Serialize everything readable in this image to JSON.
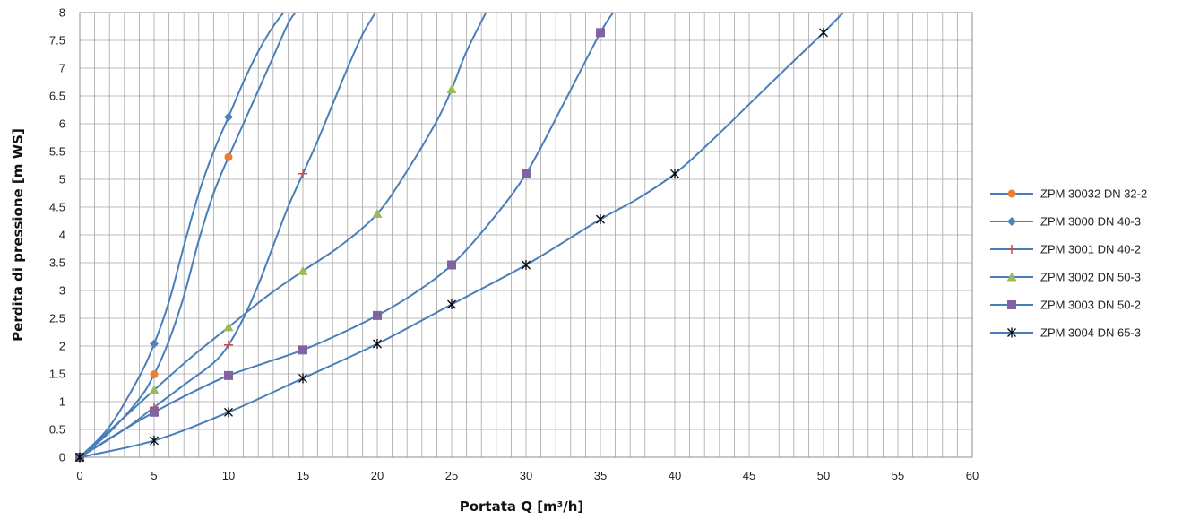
{
  "chart_data": {
    "type": "line",
    "title": "",
    "xlabel": "Portata Q [m³/h]",
    "ylabel": "Perdita di pressione  [m WS]",
    "xlim": [
      0,
      60
    ],
    "ylim": [
      0,
      8
    ],
    "x_ticks": [
      "0",
      "5",
      "10",
      "15",
      "20",
      "25",
      "30",
      "35",
      "40",
      "45",
      "50",
      "55",
      "60"
    ],
    "y_ticks": [
      "0",
      "0.5",
      "1",
      "1.5",
      "2",
      "2.5",
      "3",
      "3.5",
      "4",
      "4.5",
      "5",
      "5.5",
      "6",
      "6.5",
      "7",
      "7.5",
      "8"
    ],
    "grid": "on",
    "legend_position": "right",
    "line_color": "#4a7ebb",
    "series": [
      {
        "name": "ZPM 30032 DN 32-2",
        "marker": "circle",
        "marker_color": "#ed7d31",
        "points": [
          [
            0,
            0
          ],
          [
            5,
            1.49
          ],
          [
            10,
            5.4
          ]
        ],
        "curve": [
          [
            0,
            0
          ],
          [
            2,
            0.45
          ],
          [
            4,
            1.05
          ],
          [
            5,
            1.49
          ],
          [
            6,
            2.1
          ],
          [
            7,
            2.9
          ],
          [
            8,
            3.9
          ],
          [
            9,
            4.75
          ],
          [
            10,
            5.4
          ],
          [
            11,
            6.0
          ],
          [
            12,
            6.6
          ],
          [
            13,
            7.2
          ],
          [
            14,
            7.8
          ],
          [
            14.5,
            8.0
          ]
        ]
      },
      {
        "name": "ZPM 3000 DN 40-3",
        "marker": "diamond",
        "marker_color": "#4f81bd",
        "points": [
          [
            0,
            0
          ],
          [
            5,
            2.04
          ],
          [
            10,
            6.12
          ]
        ],
        "curve": [
          [
            0,
            0
          ],
          [
            2,
            0.55
          ],
          [
            4,
            1.45
          ],
          [
            5,
            2.04
          ],
          [
            6,
            2.8
          ],
          [
            7,
            3.8
          ],
          [
            8,
            4.75
          ],
          [
            9,
            5.5
          ],
          [
            10,
            6.12
          ],
          [
            11,
            6.75
          ],
          [
            12,
            7.3
          ],
          [
            13,
            7.75
          ],
          [
            14,
            8.1
          ]
        ]
      },
      {
        "name": "ZPM 3001 DN 40-2",
        "marker": "plus",
        "marker_color": "#c0504d",
        "points": [
          [
            0,
            0
          ],
          [
            5,
            0.9
          ],
          [
            10,
            2.02
          ],
          [
            15,
            5.1
          ]
        ],
        "curve": [
          [
            0,
            0
          ],
          [
            3,
            0.5
          ],
          [
            5,
            0.9
          ],
          [
            7,
            1.3
          ],
          [
            9,
            1.7
          ],
          [
            10,
            2.02
          ],
          [
            11,
            2.5
          ],
          [
            12,
            3.1
          ],
          [
            13,
            3.8
          ],
          [
            14,
            4.5
          ],
          [
            15,
            5.1
          ],
          [
            16,
            5.7
          ],
          [
            17,
            6.35
          ],
          [
            18,
            7.0
          ],
          [
            19,
            7.6
          ],
          [
            20,
            8.05
          ]
        ]
      },
      {
        "name": "ZPM 3002 DN 50-3",
        "marker": "triangle",
        "marker_color": "#9bbb59",
        "points": [
          [
            0,
            0
          ],
          [
            5,
            1.21
          ],
          [
            10,
            2.34
          ],
          [
            15,
            3.35
          ],
          [
            20,
            4.38
          ],
          [
            25,
            6.62
          ]
        ],
        "curve": [
          [
            0,
            0
          ],
          [
            2.5,
            0.6
          ],
          [
            5,
            1.21
          ],
          [
            7.5,
            1.8
          ],
          [
            10,
            2.34
          ],
          [
            12.5,
            2.88
          ],
          [
            15,
            3.35
          ],
          [
            17.5,
            3.8
          ],
          [
            20,
            4.38
          ],
          [
            22,
            5.15
          ],
          [
            24,
            6.05
          ],
          [
            25,
            6.62
          ],
          [
            26,
            7.3
          ],
          [
            27.5,
            8.1
          ]
        ]
      },
      {
        "name": "ZPM 3003 DN 50-2",
        "marker": "square",
        "marker_color": "#8064a2",
        "points": [
          [
            0,
            0
          ],
          [
            5,
            0.81
          ],
          [
            10,
            1.47
          ],
          [
            15,
            1.93
          ],
          [
            20,
            2.55
          ],
          [
            25,
            3.46
          ],
          [
            30,
            5.1
          ],
          [
            35,
            7.64
          ]
        ],
        "curve": [
          [
            0,
            0
          ],
          [
            2.5,
            0.42
          ],
          [
            5,
            0.81
          ],
          [
            7.5,
            1.16
          ],
          [
            10,
            1.47
          ],
          [
            12.5,
            1.7
          ],
          [
            15,
            1.93
          ],
          [
            17.5,
            2.22
          ],
          [
            20,
            2.55
          ],
          [
            22.5,
            2.95
          ],
          [
            25,
            3.46
          ],
          [
            27.5,
            4.2
          ],
          [
            30,
            5.1
          ],
          [
            32.5,
            6.35
          ],
          [
            35,
            7.64
          ],
          [
            36,
            8.05
          ]
        ]
      },
      {
        "name": "ZPM 3004 DN 65-3",
        "marker": "star",
        "marker_color": "#000000",
        "points": [
          [
            0,
            0
          ],
          [
            5,
            0.3
          ],
          [
            10,
            0.81
          ],
          [
            15,
            1.42
          ],
          [
            20,
            2.04
          ],
          [
            25,
            2.75
          ],
          [
            30,
            3.46
          ],
          [
            35,
            4.28
          ],
          [
            40,
            5.1
          ],
          [
            50,
            7.64
          ]
        ],
        "curve": [
          [
            0,
            0
          ],
          [
            5,
            0.3
          ],
          [
            10,
            0.81
          ],
          [
            15,
            1.42
          ],
          [
            20,
            2.04
          ],
          [
            25,
            2.75
          ],
          [
            30,
            3.46
          ],
          [
            35,
            4.28
          ],
          [
            37.5,
            4.65
          ],
          [
            40,
            5.1
          ],
          [
            42.5,
            5.7
          ],
          [
            45,
            6.35
          ],
          [
            47.5,
            7.0
          ],
          [
            50,
            7.64
          ],
          [
            51.5,
            8.05
          ]
        ]
      }
    ]
  }
}
